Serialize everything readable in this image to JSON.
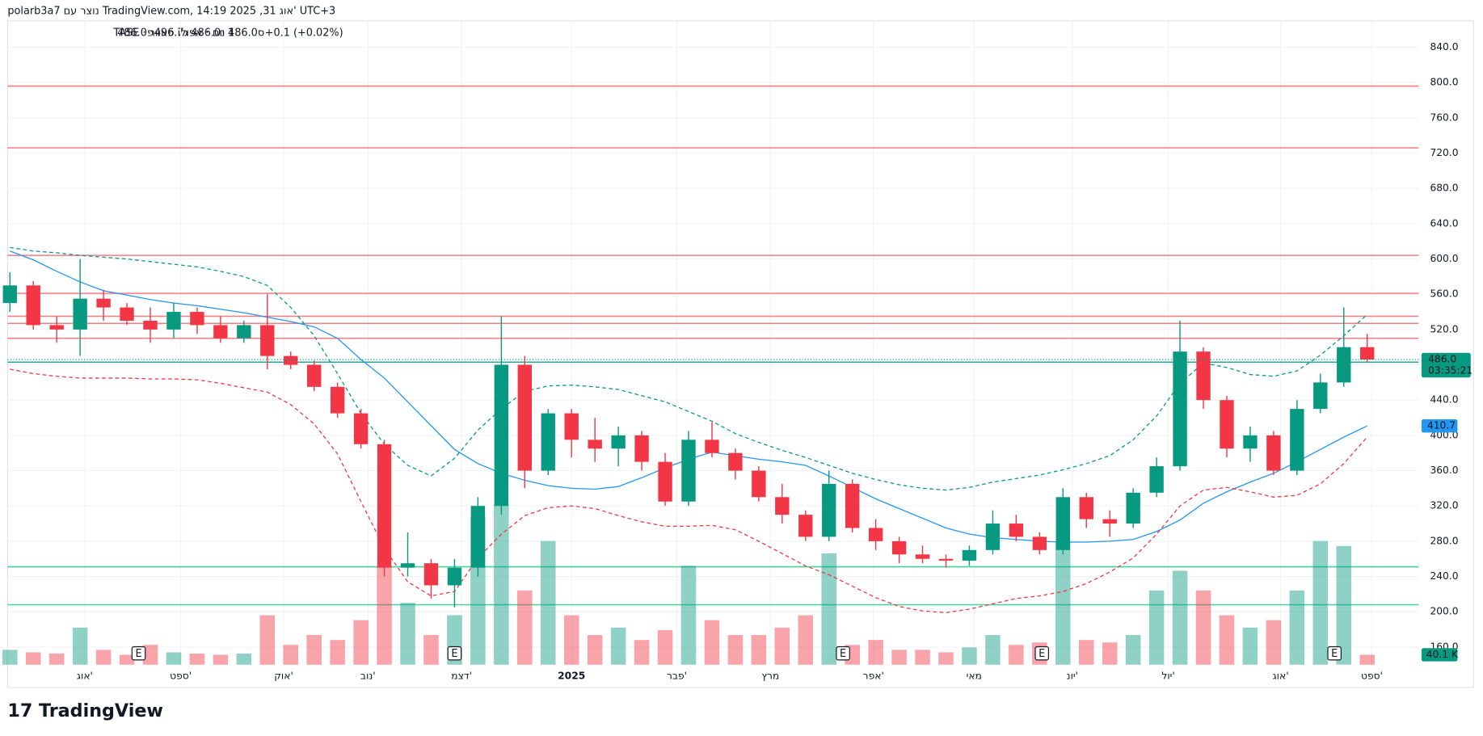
{
  "chart_data": {
    "type": "candlestick",
    "header": "polarb3a7 נוצר עם TradingView.com, 14:19 2025 ,31 אוג' UTC+3",
    "symbol": "1 יום · אפולו פאוור · TASE",
    "legend_values": [
      "פ486.0",
      "ג496.7",
      "נ486.0",
      "ס486.0",
      "+0.1 (+0.02%)"
    ],
    "brand": "TradingView",
    "up_color": "#089981",
    "down_color": "#f23645",
    "xlim": [
      -0.1,
      60.2
    ],
    "xticks": [
      {
        "value": 3.2,
        "label": "אוג'"
      },
      {
        "value": 7.3,
        "label": "ספט'"
      },
      {
        "value": 11.7,
        "label": "אוק'"
      },
      {
        "value": 15.3,
        "label": "נוב'"
      },
      {
        "value": 19.3,
        "label": "דצמ'"
      },
      {
        "value": 24.0,
        "label": "2025"
      },
      {
        "value": 28.5,
        "label": "פבר'"
      },
      {
        "value": 32.5,
        "label": "מרץ"
      },
      {
        "value": 36.9,
        "label": "אפר'"
      },
      {
        "value": 41.2,
        "label": "מאי"
      },
      {
        "value": 45.4,
        "label": "יונ'"
      },
      {
        "value": 49.5,
        "label": "יול'"
      },
      {
        "value": 54.3,
        "label": "אוג'"
      },
      {
        "value": 58.2,
        "label": "ספט'"
      }
    ],
    "ylim": [
      140,
      870
    ],
    "yticks": [
      {
        "value": 160,
        "label": "160.0"
      },
      {
        "value": 200,
        "label": "200.0"
      },
      {
        "value": 240,
        "label": "240.0"
      },
      {
        "value": 280,
        "label": "280.0"
      },
      {
        "value": 320,
        "label": "320.0"
      },
      {
        "value": 360,
        "label": "360.0"
      },
      {
        "value": 400,
        "label": "400.0"
      },
      {
        "value": 440,
        "label": "440.0"
      },
      {
        "value": 480,
        "label": "480.0"
      },
      {
        "value": 520,
        "label": "520.0"
      },
      {
        "value": 560,
        "label": "560.0"
      },
      {
        "value": 600,
        "label": "600.0"
      },
      {
        "value": 640,
        "label": "640.0"
      },
      {
        "value": 680,
        "label": "680.0"
      },
      {
        "value": 720,
        "label": "720.0"
      },
      {
        "value": 760,
        "label": "760.0"
      },
      {
        "value": 800,
        "label": "800.0"
      },
      {
        "value": 840,
        "label": "840.0"
      }
    ],
    "grid": true,
    "open": [
      550,
      570,
      525,
      520,
      555,
      545,
      530,
      520,
      540,
      525,
      510,
      525,
      490,
      480,
      455,
      425,
      390,
      250,
      255,
      230,
      250,
      320,
      480,
      360,
      425,
      395,
      385,
      400,
      370,
      325,
      395,
      380,
      360,
      330,
      310,
      285,
      345,
      295,
      280,
      265,
      260,
      258,
      270,
      300,
      285,
      270,
      330,
      305,
      300,
      335,
      365,
      495,
      440,
      385,
      400,
      360,
      430,
      460,
      500
    ],
    "high": [
      585,
      575,
      535,
      600,
      565,
      550,
      545,
      550,
      545,
      535,
      530,
      560,
      495,
      485,
      460,
      430,
      395,
      290,
      260,
      260,
      330,
      535,
      490,
      430,
      430,
      420,
      410,
      405,
      380,
      405,
      415,
      385,
      365,
      345,
      315,
      360,
      350,
      305,
      285,
      275,
      265,
      275,
      315,
      310,
      290,
      340,
      335,
      315,
      340,
      375,
      530,
      500,
      445,
      410,
      405,
      440,
      470,
      545,
      515
    ],
    "low": [
      540,
      520,
      505,
      490,
      530,
      525,
      505,
      510,
      515,
      505,
      505,
      475,
      475,
      450,
      420,
      385,
      240,
      240,
      215,
      205,
      240,
      310,
      340,
      355,
      375,
      370,
      365,
      360,
      320,
      320,
      375,
      350,
      325,
      300,
      280,
      280,
      290,
      270,
      255,
      255,
      250,
      252,
      265,
      280,
      265,
      265,
      295,
      285,
      295,
      330,
      360,
      430,
      375,
      370,
      355,
      355,
      425,
      455,
      483
    ],
    "close": [
      570,
      525,
      520,
      555,
      545,
      530,
      520,
      540,
      525,
      510,
      525,
      490,
      480,
      455,
      425,
      390,
      250,
      255,
      230,
      250,
      320,
      480,
      360,
      425,
      395,
      385,
      400,
      370,
      325,
      395,
      380,
      360,
      330,
      310,
      285,
      345,
      295,
      280,
      265,
      260,
      258,
      270,
      300,
      285,
      270,
      330,
      305,
      300,
      335,
      365,
      495,
      440,
      385,
      400,
      360,
      430,
      460,
      500,
      486.0
    ],
    "volume": [
      60,
      50,
      45,
      150,
      60,
      40,
      80,
      50,
      45,
      40,
      45,
      200,
      80,
      120,
      100,
      180,
      400,
      250,
      120,
      200,
      600,
      650,
      300,
      500,
      200,
      120,
      150,
      100,
      140,
      400,
      180,
      120,
      120,
      150,
      200,
      450,
      80,
      100,
      60,
      60,
      50,
      70,
      120,
      80,
      90,
      500,
      100,
      90,
      120,
      300,
      380,
      300,
      200,
      150,
      180,
      300,
      500,
      480,
      40.1
    ],
    "volume_end_label": "40.1 K",
    "last_price": {
      "value": 486.0,
      "label": "486.0",
      "countdown": "03:35:21",
      "color": "#089981"
    },
    "series": [
      {
        "name": "MA",
        "color": "#2196f3",
        "dashed": false,
        "end_label": "410.7",
        "values": [
          609,
          599,
          586,
          574,
          564,
          559,
          554,
          550,
          547,
          543,
          539,
          534,
          529,
          523,
          510,
          486,
          465,
          438,
          411,
          384,
          368,
          357,
          349,
          343,
          340,
          339,
          342,
          352,
          363,
          373,
          381,
          377,
          373,
          370,
          366,
          354,
          341,
          328,
          317,
          306,
          295,
          288,
          284,
          282,
          280,
          279,
          279,
          280,
          282,
          291,
          304,
          323,
          336,
          347,
          357,
          370,
          384,
          398,
          410.7
        ]
      },
      {
        "name": "Upper",
        "color": "#089981",
        "dashed": true,
        "values": [
          613,
          609,
          607,
          604,
          602,
          600,
          597,
          594,
          591,
          586,
          580,
          570,
          545,
          513,
          470,
          425,
          390,
          366,
          354,
          374,
          406,
          430,
          450,
          456,
          457,
          455,
          452,
          445,
          438,
          427,
          416,
          402,
          392,
          383,
          375,
          366,
          357,
          350,
          344,
          340,
          338,
          341,
          347,
          351,
          355,
          361,
          368,
          377,
          395,
          422,
          459,
          482,
          477,
          469,
          467,
          473,
          491,
          513,
          537
        ]
      },
      {
        "name": "Lower",
        "color": "#f23645",
        "dashed": true,
        "values": [
          475,
          470,
          467,
          465,
          465,
          465,
          464,
          464,
          463,
          459,
          454,
          449,
          435,
          413,
          379,
          325,
          272,
          234,
          218,
          223,
          261,
          288,
          309,
          318,
          320,
          317,
          309,
          302,
          297,
          297,
          298,
          293,
          280,
          266,
          252,
          242,
          229,
          216,
          206,
          201,
          199,
          203,
          209,
          215,
          218,
          223,
          232,
          245,
          261,
          288,
          320,
          338,
          341,
          336,
          330,
          332,
          345,
          368,
          398
        ]
      }
    ],
    "levels": [
      {
        "value": 796,
        "color": "#f77c80"
      },
      {
        "value": 726,
        "color": "#f77c80"
      },
      {
        "value": 604,
        "color": "#f77c80"
      },
      {
        "value": 561,
        "color": "#f77c80"
      },
      {
        "value": 535,
        "color": "#f77c80"
      },
      {
        "value": 527,
        "color": "#f77c80"
      },
      {
        "value": 510,
        "color": "#f77c80"
      },
      {
        "value": 483,
        "color": "#22ab94"
      },
      {
        "value": 251,
        "color": "#42d39a"
      },
      {
        "value": 208,
        "color": "#42d39a"
      }
    ],
    "events": [
      {
        "x": 5.5,
        "label": "E"
      },
      {
        "x": 19.0,
        "label": "E"
      },
      {
        "x": 35.6,
        "label": "E"
      },
      {
        "x": 44.1,
        "label": "E"
      },
      {
        "x": 56.6,
        "label": "E"
      }
    ]
  }
}
